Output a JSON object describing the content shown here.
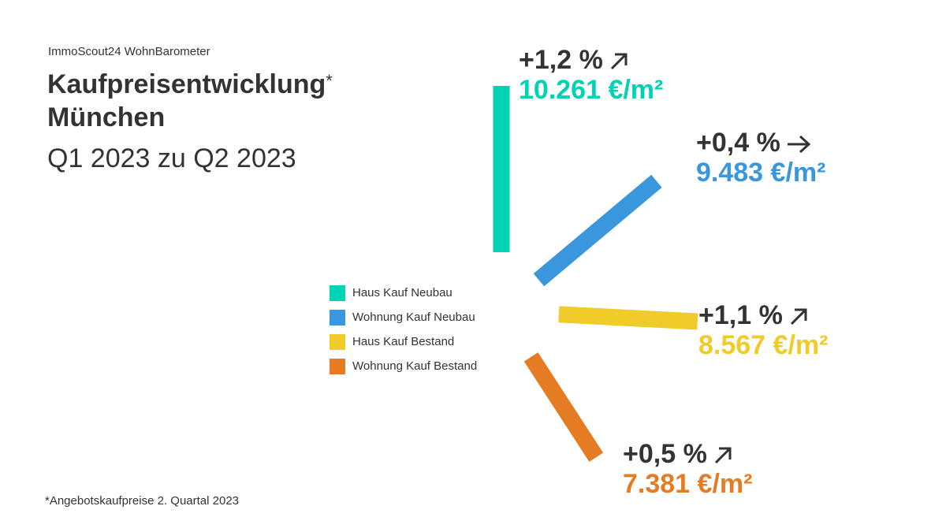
{
  "header": {
    "source": "ImmoScout24 WohnBarometer",
    "title_line1": "Kaufpreisentwicklung",
    "title_star": "*",
    "title_line2": "München",
    "subtitle": "Q1 2023 zu Q2 2023"
  },
  "footnote": "*Angebotskaufpreise 2. Quartal 2023",
  "chart_data": {
    "type": "bar",
    "title": "Kaufpreisentwicklung* München",
    "subtitle": "Q1 2023 zu Q2 2023",
    "categories": [
      "Haus Kauf Neubau",
      "Wohnung Kauf Neubau",
      "Haus Kauf Bestand",
      "Wohnung Kauf Bestand"
    ],
    "series": [
      {
        "name": "Veränderung",
        "values": [
          "+1,2 %",
          "+0,4 %",
          "+1,1 %",
          "+0,5 %"
        ],
        "numeric": [
          1.2,
          0.4,
          1.1,
          0.5
        ]
      },
      {
        "name": "Preis",
        "values": [
          "10.261 €/m²",
          "9.483 €/m²",
          "8.567 €/m²",
          "7.381 €/m²"
        ],
        "numeric": [
          10261,
          9483,
          8567,
          7381
        ]
      }
    ],
    "trend_arrows": [
      "arrow-up-right-icon",
      "arrow-right-icon",
      "arrow-up-right-icon",
      "arrow-up-right-icon"
    ],
    "colors": [
      "#00d2b4",
      "#3a97dd",
      "#f0cc2a",
      "#e57c23"
    ],
    "legend_position": "center"
  }
}
